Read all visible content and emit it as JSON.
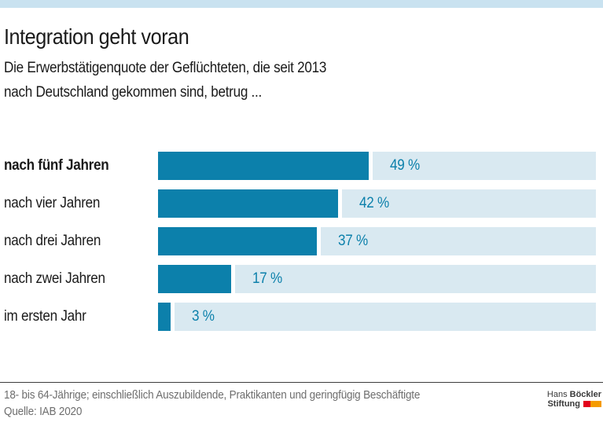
{
  "page": {
    "title": "Integration geht voran",
    "subtitle_line1": "Die Erwerbstätigenquote der Geflüchteten, die seit 2013",
    "subtitle_line2": "nach Deutschland gekommen sind, betrug  ..."
  },
  "chart_data": {
    "type": "bar",
    "orientation": "horizontal",
    "title": "Integration geht voran",
    "categories": [
      "nach fünf Jahren",
      "nach vier Jahren",
      "nach drei Jahren",
      "nach zwei Jahren",
      "im ersten Jahr"
    ],
    "values": [
      49,
      42,
      37,
      17,
      3
    ],
    "value_labels": [
      "49 %",
      "42 %",
      "37 %",
      "17 %",
      "3 %"
    ],
    "unit": "%",
    "highlighted_category_index": 0,
    "xlim": [
      0,
      102
    ],
    "grid": false,
    "legend": false,
    "bar_color": "#0c80ab",
    "track_color": "#d9e9f1",
    "value_label_color": "#0c80ab"
  },
  "footer": {
    "note": "18- bis 64-Jährige; einschließlich Auszubildende, Praktikanten und geringfügig Beschäftigte",
    "source": "Quelle: IAB 2020"
  },
  "logo": {
    "line1_regular": "Hans ",
    "line1_bold": "Böckler",
    "line2_bold": "Stiftung",
    "flag_colors": [
      "#e2001a",
      "#f59b00"
    ]
  },
  "colors": {
    "top_strip": "#c9e2f0",
    "text": "#1a1a1a",
    "footer_text": "#6e6e6e",
    "divider": "#3c3c3c"
  }
}
